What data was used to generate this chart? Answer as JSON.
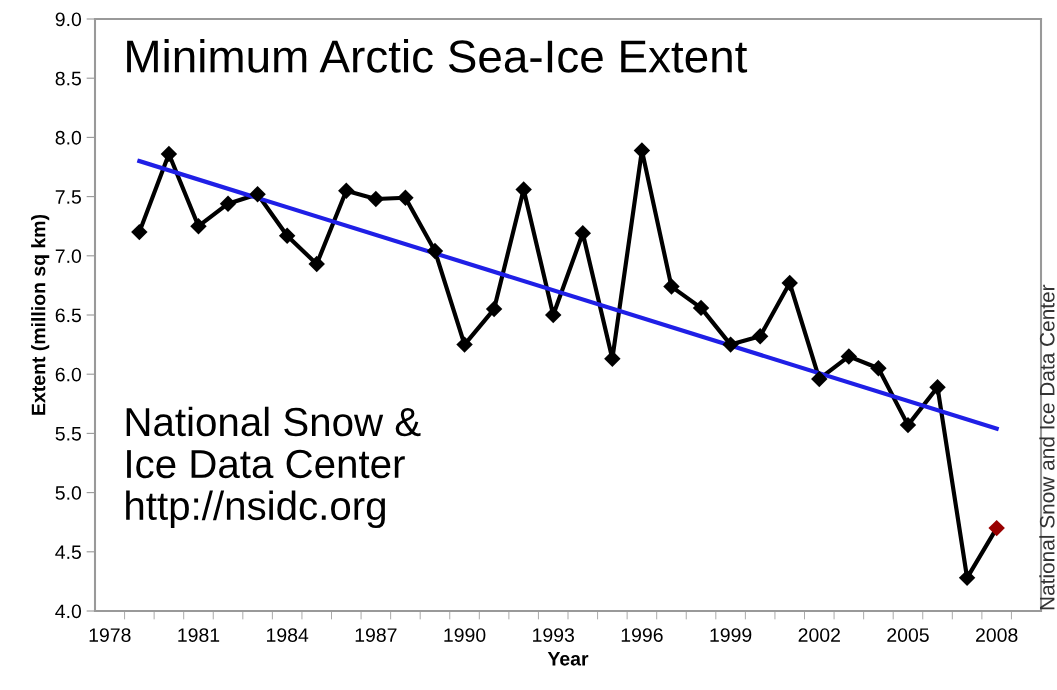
{
  "chart_data": {
    "type": "line",
    "title": "Minimum Arctic Sea-Ice Extent",
    "xlabel": "Year",
    "ylabel": "Extent (million sq km)",
    "x": [
      1979,
      1980,
      1981,
      1982,
      1983,
      1984,
      1985,
      1986,
      1987,
      1988,
      1989,
      1990,
      1991,
      1992,
      1993,
      1994,
      1995,
      1996,
      1997,
      1998,
      1999,
      2000,
      2001,
      2002,
      2003,
      2004,
      2005,
      2006,
      2007,
      2008
    ],
    "series": [
      {
        "color": "#000000",
        "marker": "diamond",
        "colors": [
          "#000000",
          "#000000",
          "#000000",
          "#000000",
          "#000000",
          "#000000",
          "#000000",
          "#000000",
          "#000000",
          "#000000",
          "#000000",
          "#000000",
          "#000000",
          "#000000",
          "#000000",
          "#000000",
          "#000000",
          "#000000",
          "#000000",
          "#000000",
          "#000000",
          "#000000",
          "#000000",
          "#000000",
          "#000000",
          "#000000",
          "#000000",
          "#000000",
          "#000000",
          "#990000"
        ],
        "values": [
          7.2,
          7.86,
          7.25,
          7.44,
          7.52,
          7.17,
          6.93,
          7.55,
          7.48,
          7.49,
          7.04,
          6.25,
          6.55,
          7.56,
          6.5,
          7.19,
          6.13,
          7.89,
          6.74,
          6.56,
          6.25,
          6.32,
          6.77,
          5.96,
          6.15,
          6.05,
          5.57,
          5.89,
          4.28,
          4.7
        ]
      },
      {
        "type": "line",
        "color": "#1f1fe6",
        "marker": "none",
        "x": [
          1979,
          2008
        ],
        "values": [
          7.8,
          5.54
        ]
      }
    ],
    "xlim": [
      1977.5,
      2009.5
    ],
    "xticks": [
      {
        "value": 1978,
        "label": "1978"
      },
      {
        "value": 1981,
        "label": "1981"
      },
      {
        "value": 1984,
        "label": "1984"
      },
      {
        "value": 1987,
        "label": "1987"
      },
      {
        "value": 1990,
        "label": "1990"
      },
      {
        "value": 1993,
        "label": "1993"
      },
      {
        "value": 1996,
        "label": "1996"
      },
      {
        "value": 1999,
        "label": "1999"
      },
      {
        "value": 2002,
        "label": "2002"
      },
      {
        "value": 2005,
        "label": "2005"
      },
      {
        "value": 2008,
        "label": "2008"
      },
      {
        "value": 1978.5,
        "label": null
      },
      {
        "value": 1979.5,
        "label": null
      },
      {
        "value": 1980.5,
        "label": null
      },
      {
        "value": 1981.5,
        "label": null
      },
      {
        "value": 1982.5,
        "label": null
      },
      {
        "value": 1983.5,
        "label": null
      },
      {
        "value": 1984.5,
        "label": null
      },
      {
        "value": 1985.5,
        "label": null
      },
      {
        "value": 1986.5,
        "label": null
      },
      {
        "value": 1987.5,
        "label": null
      },
      {
        "value": 1988.5,
        "label": null
      },
      {
        "value": 1989.5,
        "label": null
      },
      {
        "value": 1990.5,
        "label": null
      },
      {
        "value": 1991.5,
        "label": null
      },
      {
        "value": 1992.5,
        "label": null
      },
      {
        "value": 1993.5,
        "label": null
      },
      {
        "value": 1994.5,
        "label": null
      },
      {
        "value": 1995.5,
        "label": null
      },
      {
        "value": 1996.5,
        "label": null
      },
      {
        "value": 1997.5,
        "label": null
      },
      {
        "value": 1998.5,
        "label": null
      },
      {
        "value": 1999.5,
        "label": null
      },
      {
        "value": 2000.5,
        "label": null
      },
      {
        "value": 2001.5,
        "label": null
      },
      {
        "value": 2002.5,
        "label": null
      },
      {
        "value": 2003.5,
        "label": null
      },
      {
        "value": 2004.5,
        "label": null
      },
      {
        "value": 2005.5,
        "label": null
      },
      {
        "value": 2006.5,
        "label": null
      },
      {
        "value": 2007.5,
        "label": null
      },
      {
        "value": 2008.5,
        "label": null
      }
    ],
    "ylim": [
      4.0,
      9.0
    ],
    "yticks": [
      {
        "value": 4.0,
        "label": "4.0"
      },
      {
        "value": 4.5,
        "label": "4.5"
      },
      {
        "value": 5.0,
        "label": "5.0"
      },
      {
        "value": 5.5,
        "label": "5.5"
      },
      {
        "value": 6.0,
        "label": "6.0"
      },
      {
        "value": 6.5,
        "label": "6.5"
      },
      {
        "value": 7.0,
        "label": "7.0"
      },
      {
        "value": 7.5,
        "label": "7.5"
      },
      {
        "value": 8.0,
        "label": "8.0"
      },
      {
        "value": 8.5,
        "label": "8.5"
      },
      {
        "value": 9.0,
        "label": "9.0"
      }
    ],
    "grid": false,
    "legend": false,
    "annotations": [
      "National Snow &\nIce Data Center\nhttp://nsidc.org",
      "National Snow and Ice Data Center"
    ]
  }
}
